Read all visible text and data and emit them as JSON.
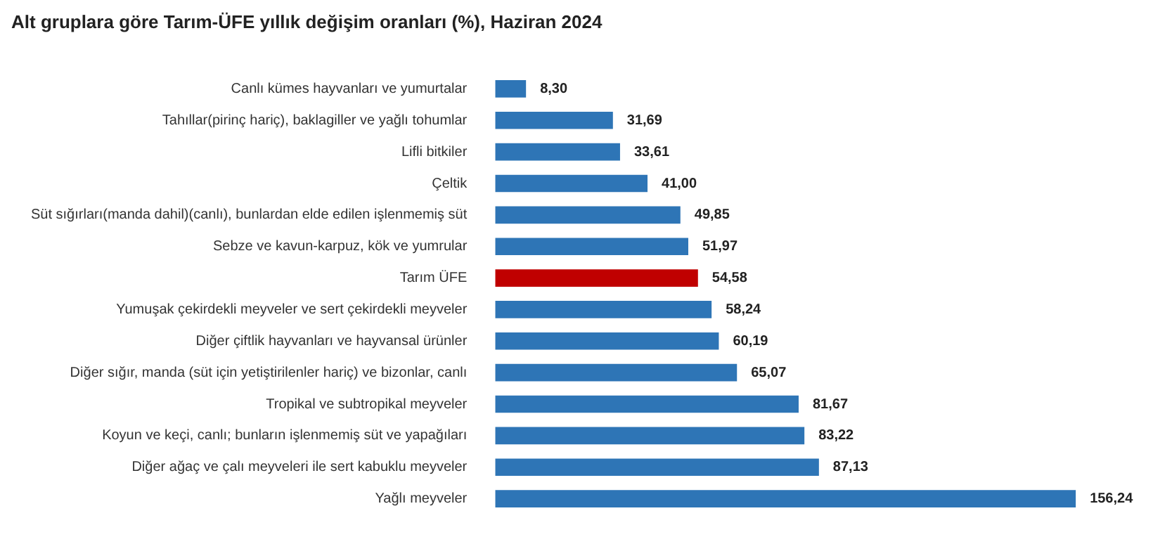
{
  "chart_data": {
    "type": "bar",
    "orientation": "horizontal",
    "title": "Alt gruplara göre Tarım-ÜFE yıllık değişim oranları (%), Haziran 2024",
    "categories": [
      "Canlı kümes hayvanları ve yumurtalar",
      "Tahıllar(pirinç hariç), baklagiller ve yağlı tohumlar",
      "Lifli bitkiler",
      "Çeltik",
      "Süt sığırları(manda dahil)(canlı), bunlardan elde edilen işlenmemiş süt",
      "Sebze ve kavun-karpuz, kök ve yumrular",
      "Tarım ÜFE",
      "Yumuşak çekirdekli meyveler ve sert çekirdekli meyveler",
      "Diğer çiftlik hayvanları ve hayvansal ürünler",
      "Diğer sığır, manda (süt için yetiştirilenler hariç) ve bizonlar, canlı",
      "Tropikal ve subtropikal meyveler",
      "Koyun ve keçi, canlı; bunların işlenmemiş süt ve yapağıları",
      "Diğer ağaç ve çalı meyveleri ile sert kabuklu meyveler",
      "Yağlı meyveler"
    ],
    "values": [
      8.3,
      31.69,
      33.61,
      41.0,
      49.85,
      51.97,
      54.58,
      58.24,
      60.19,
      65.07,
      81.67,
      83.22,
      87.13,
      156.24
    ],
    "colors": [
      "#2e75b6",
      "#2e75b6",
      "#2e75b6",
      "#2e75b6",
      "#2e75b6",
      "#2e75b6",
      "#c00000",
      "#2e75b6",
      "#2e75b6",
      "#2e75b6",
      "#2e75b6",
      "#2e75b6",
      "#2e75b6",
      "#2e75b6"
    ],
    "value_labels": [
      "8,30",
      "31,69",
      "33,61",
      "41,00",
      "49,85",
      "51,97",
      "54,58",
      "58,24",
      "60,19",
      "65,07",
      "81,67",
      "83,22",
      "87,13",
      "156,24"
    ],
    "grid": false,
    "legend": false
  }
}
